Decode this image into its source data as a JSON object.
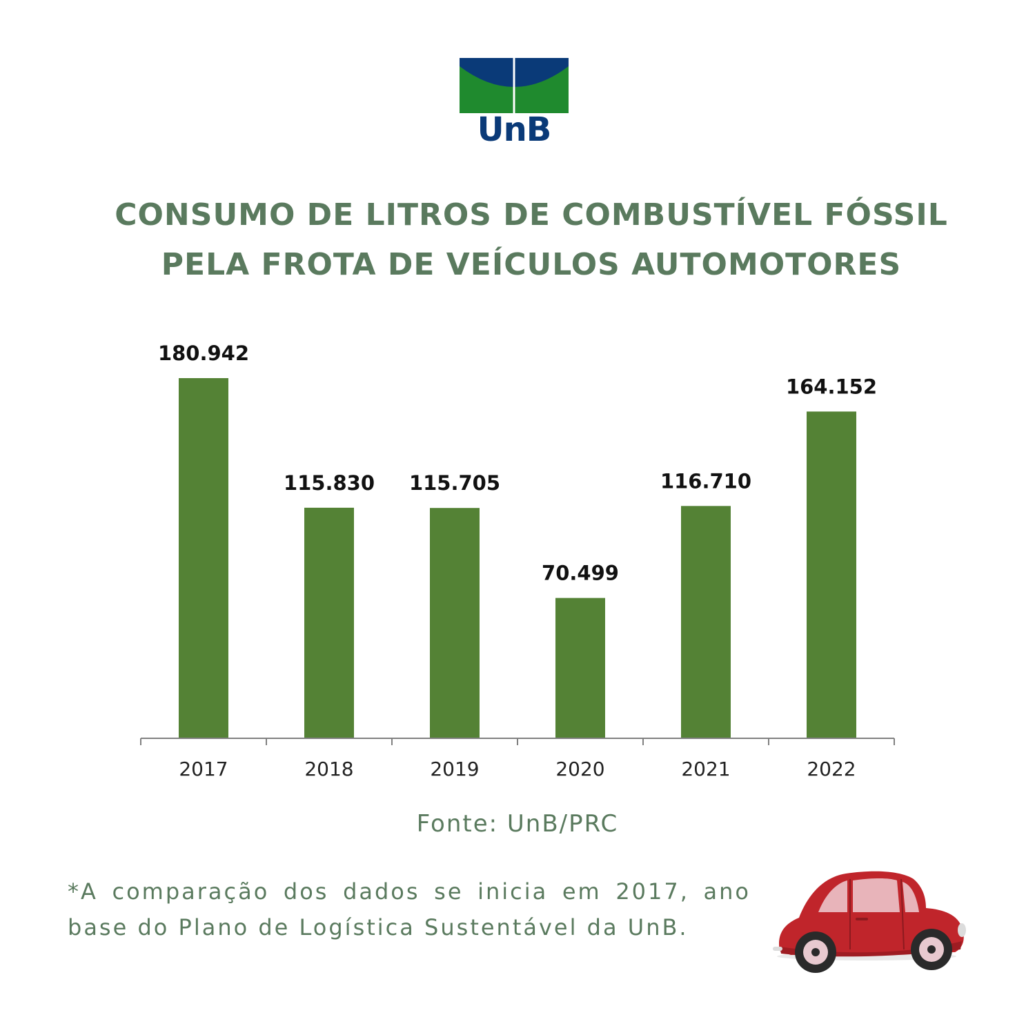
{
  "logo": {
    "text": "UnB",
    "blue": "#0a3a78",
    "green": "#1f8a2e"
  },
  "title": {
    "line1": "CONSUMO DE LITROS DE COMBUSTÍVEL FÓSSIL",
    "line2": "PELA FROTA DE VEÍCULOS AUTOMOTORES",
    "color": "#5a7a5e"
  },
  "chart_data": {
    "type": "bar",
    "categories": [
      "2017",
      "2018",
      "2019",
      "2020",
      "2021",
      "2022"
    ],
    "values": [
      180942,
      115830,
      115705,
      70499,
      116710,
      164152
    ],
    "value_labels": [
      "180.942",
      "115.830",
      "115.705",
      "70.499",
      "116.710",
      "164.152"
    ],
    "title": "CONSUMO DE LITROS DE COMBUSTÍVEL FÓSSIL PELA FROTA DE VEÍCULOS AUTOMOTORES",
    "xlabel": "",
    "ylabel": "",
    "ylim": [
      0,
      180942
    ],
    "grid": false,
    "legend": "none",
    "bar_color": "#548235",
    "axis_color": "#808080",
    "label_color": "#111111",
    "tick_color": "#222222"
  },
  "source": {
    "text": "Fonte: UnB/PRC",
    "color": "#5a7a5e"
  },
  "note": {
    "text": "*A comparação dos dados se inicia em 2017, ano base do Plano de Logística Sustentável da UnB.",
    "color": "#5a7a5e"
  },
  "car": {
    "icon": "car-icon",
    "body_color": "#c0252b",
    "window_color": "#e8b4ba",
    "wheel_color": "#2a2a2a"
  }
}
